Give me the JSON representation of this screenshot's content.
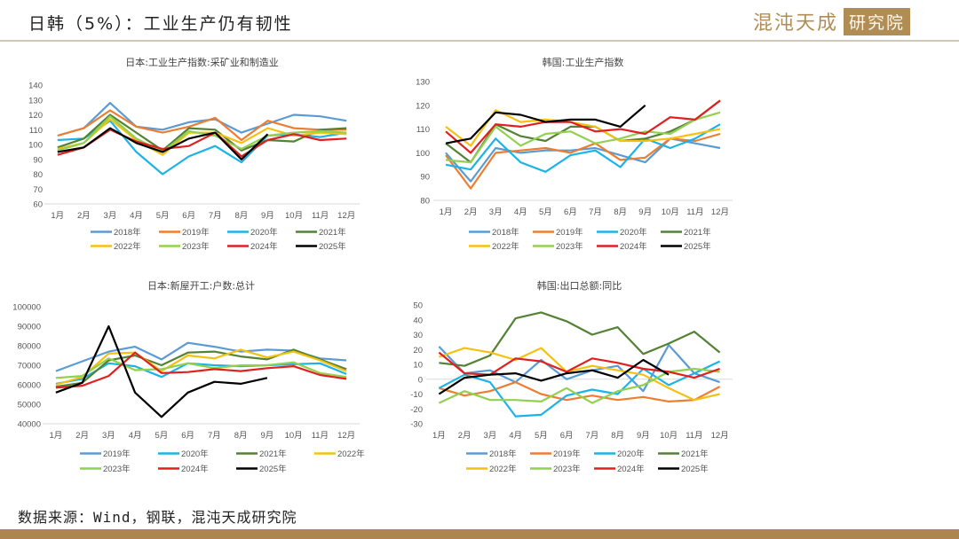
{
  "page": {
    "title": "日韩（5%）：工业生产仍有韧性",
    "logo_text": "混沌天成",
    "logo_box": "研究院",
    "source": "数据来源：Wind，钢联，混沌天成研究院",
    "colors": {
      "accent": "#b08d55",
      "bar": "#ad854f",
      "divider": "#cfc8b8"
    }
  },
  "chart_data": [
    {
      "id": "jp-ip",
      "type": "line",
      "title": "日本:工业生产指数:采矿业和制造业",
      "xlabel": "",
      "ylabel": "",
      "categories": [
        "1月",
        "2月",
        "3月",
        "4月",
        "5月",
        "6月",
        "7月",
        "8月",
        "9月",
        "10月",
        "11月",
        "12月"
      ],
      "ylim": [
        60,
        140
      ],
      "yticks": [
        60,
        70,
        80,
        90,
        100,
        110,
        120,
        130,
        140
      ],
      "zero_line": false,
      "legend": "bottom",
      "series": [
        {
          "name": "2018年",
          "color": "#5b9bd5",
          "values": [
            106,
            111,
            128,
            112,
            110,
            115,
            117,
            108,
            114,
            120,
            119,
            116
          ]
        },
        {
          "name": "2019年",
          "color": "#ed7d31",
          "values": [
            106,
            111,
            123,
            112,
            108,
            112,
            118,
            103,
            116,
            111,
            110,
            110
          ]
        },
        {
          "name": "2020年",
          "color": "#1cb3e6",
          "values": [
            103,
            104,
            116,
            95,
            80,
            92,
            99,
            88,
            106,
            107,
            105,
            108
          ]
        },
        {
          "name": "2021年",
          "color": "#548235",
          "values": [
            98,
            104,
            120,
            108,
            96,
            111,
            110,
            96,
            103,
            102,
            110,
            111
          ]
        },
        {
          "name": "2022年",
          "color": "#f5c111",
          "values": [
            97,
            101,
            117,
            103,
            93,
            108,
            108,
            101,
            111,
            106,
            108,
            107
          ]
        },
        {
          "name": "2023年",
          "color": "#92d050",
          "values": [
            96,
            101,
            119,
            104,
            95,
            109,
            106,
            97,
            106,
            108,
            109,
            108
          ]
        },
        {
          "name": "2024年",
          "color": "#e02020",
          "values": [
            93,
            98,
            110,
            102,
            97,
            99,
            108,
            92,
            103,
            107,
            103,
            104
          ]
        },
        {
          "name": "2025年",
          "color": "#000000",
          "values": [
            95,
            98,
            111,
            101,
            95,
            104,
            108,
            90,
            107,
            null,
            null,
            null
          ]
        }
      ]
    },
    {
      "id": "kr-ip",
      "type": "line",
      "title": "韩国:工业生产指数",
      "xlabel": "",
      "ylabel": "",
      "categories": [
        "1月",
        "2月",
        "3月",
        "4月",
        "5月",
        "6月",
        "7月",
        "8月",
        "9月",
        "10月",
        "11月",
        "12月"
      ],
      "ylim": [
        80,
        130
      ],
      "yticks": [
        80,
        90,
        100,
        110,
        120,
        130
      ],
      "zero_line": false,
      "legend": "bottom",
      "series": [
        {
          "name": "2018年",
          "color": "#5b9bd5",
          "values": [
            100,
            88,
            102,
            100,
            101,
            101,
            102,
            99,
            96,
            106,
            104,
            102
          ]
        },
        {
          "name": "2019年",
          "color": "#ed7d31",
          "values": [
            99,
            85,
            100,
            101,
            102,
            100,
            104,
            97,
            98,
            106,
            105,
            108
          ]
        },
        {
          "name": "2020年",
          "color": "#1cb3e6",
          "values": [
            95,
            93,
            106,
            96,
            92,
            99,
            101,
            94,
            106,
            102,
            106,
            112
          ]
        },
        {
          "name": "2021年",
          "color": "#548235",
          "values": [
            104,
            96,
            112,
            107,
            105,
            111,
            111,
            105,
            106,
            109,
            114,
            122
          ]
        },
        {
          "name": "2022年",
          "color": "#f5c111",
          "values": [
            111,
            103,
            118,
            113,
            114,
            113,
            111,
            105,
            105,
            106,
            108,
            110
          ]
        },
        {
          "name": "2023年",
          "color": "#92d050",
          "values": [
            97,
            96,
            111,
            103,
            108,
            109,
            104,
            106,
            109,
            108,
            114,
            117
          ]
        },
        {
          "name": "2024年",
          "color": "#e02020",
          "values": [
            109,
            100,
            112,
            111,
            113,
            113,
            109,
            110,
            108,
            115,
            114,
            122
          ]
        },
        {
          "name": "2025年",
          "color": "#000000",
          "values": [
            104,
            106,
            117,
            116,
            113,
            114,
            114,
            111,
            120,
            null,
            null,
            null
          ]
        }
      ]
    },
    {
      "id": "jp-housing",
      "type": "line",
      "title": "日本:新屋开工:户数:总计",
      "xlabel": "",
      "ylabel": "",
      "categories": [
        "1月",
        "2月",
        "3月",
        "4月",
        "5月",
        "6月",
        "7月",
        "8月",
        "9月",
        "10月",
        "11月",
        "12月"
      ],
      "ylim": [
        40000,
        100000
      ],
      "yticks": [
        40000,
        50000,
        60000,
        70000,
        80000,
        90000,
        100000
      ],
      "zero_line": false,
      "legend": "bottom",
      "series": [
        {
          "name": "2019年",
          "color": "#5b9bd5",
          "values": [
            67000,
            72000,
            77000,
            79500,
            73000,
            81500,
            79500,
            77000,
            78000,
            77500,
            73500,
            72500
          ]
        },
        {
          "name": "2020年",
          "color": "#1cb3e6",
          "values": [
            60500,
            63000,
            71000,
            69500,
            64000,
            71000,
            70000,
            69500,
            70000,
            70500,
            71000,
            65500
          ]
        },
        {
          "name": "2021年",
          "color": "#548235",
          "values": [
            59000,
            61000,
            72500,
            75000,
            70000,
            76500,
            77000,
            74500,
            73000,
            78000,
            73000,
            68000
          ]
        },
        {
          "name": "2022年",
          "color": "#f5c111",
          "values": [
            60000,
            64000,
            76000,
            76500,
            67000,
            75000,
            73500,
            78000,
            74000,
            77000,
            72500,
            67000
          ]
        },
        {
          "name": "2023年",
          "color": "#92d050",
          "values": [
            63500,
            64500,
            73500,
            67500,
            68000,
            71000,
            68500,
            70000,
            70000,
            71500,
            66000,
            64000
          ]
        },
        {
          "name": "2024年",
          "color": "#e02020",
          "values": [
            58500,
            59500,
            64500,
            76500,
            66000,
            66500,
            68000,
            67000,
            68500,
            69500,
            65000,
            63000
          ]
        },
        {
          "name": "2025年",
          "color": "#000000",
          "values": [
            56000,
            61000,
            90000,
            56000,
            43500,
            56000,
            61500,
            60500,
            63500,
            null,
            null,
            null
          ]
        }
      ]
    },
    {
      "id": "kr-exports",
      "type": "line",
      "title": "韩国:出口总额:同比",
      "xlabel": "",
      "ylabel": "",
      "categories": [
        "1月",
        "2月",
        "3月",
        "4月",
        "5月",
        "6月",
        "7月",
        "8月",
        "9月",
        "10月",
        "11月",
        "12月"
      ],
      "ylim": [
        -30,
        50
      ],
      "yticks": [
        -30,
        -20,
        -10,
        0,
        10,
        20,
        30,
        40,
        50
      ],
      "zero_line": true,
      "legend": "bottom",
      "series": [
        {
          "name": "2018年",
          "color": "#5b9bd5",
          "values": [
            22,
            4,
            6,
            -2,
            13,
            0,
            6,
            9,
            -8,
            23,
            4,
            -2
          ]
        },
        {
          "name": "2019年",
          "color": "#ed7d31",
          "values": [
            -6,
            -11,
            -8,
            -2,
            -10,
            -14,
            -11,
            -14,
            -12,
            -15,
            -14,
            -5
          ]
        },
        {
          "name": "2020年",
          "color": "#1cb3e6",
          "values": [
            -6,
            3,
            -2,
            -25,
            -24,
            -11,
            -7,
            -10,
            7,
            -4,
            4,
            12
          ]
        },
        {
          "name": "2021年",
          "color": "#548235",
          "values": [
            11,
            9,
            16,
            41,
            45,
            39,
            30,
            35,
            17,
            24,
            32,
            18
          ]
        },
        {
          "name": "2022年",
          "color": "#f5c111",
          "values": [
            15,
            21,
            18,
            13,
            21,
            5,
            9,
            6,
            3,
            -6,
            -14,
            -10
          ]
        },
        {
          "name": "2023年",
          "color": "#92d050",
          "values": [
            -16,
            -8,
            -14,
            -14,
            -15,
            -6,
            -16,
            -8,
            -4,
            5,
            7,
            5
          ]
        },
        {
          "name": "2024年",
          "color": "#e02020",
          "values": [
            18,
            4,
            3,
            14,
            12,
            5,
            14,
            11,
            7,
            5,
            1,
            7
          ]
        },
        {
          "name": "2025年",
          "color": "#000000",
          "values": [
            -10,
            1,
            3,
            4,
            -1,
            4,
            6,
            1,
            13,
            3,
            null,
            null
          ]
        }
      ]
    }
  ]
}
